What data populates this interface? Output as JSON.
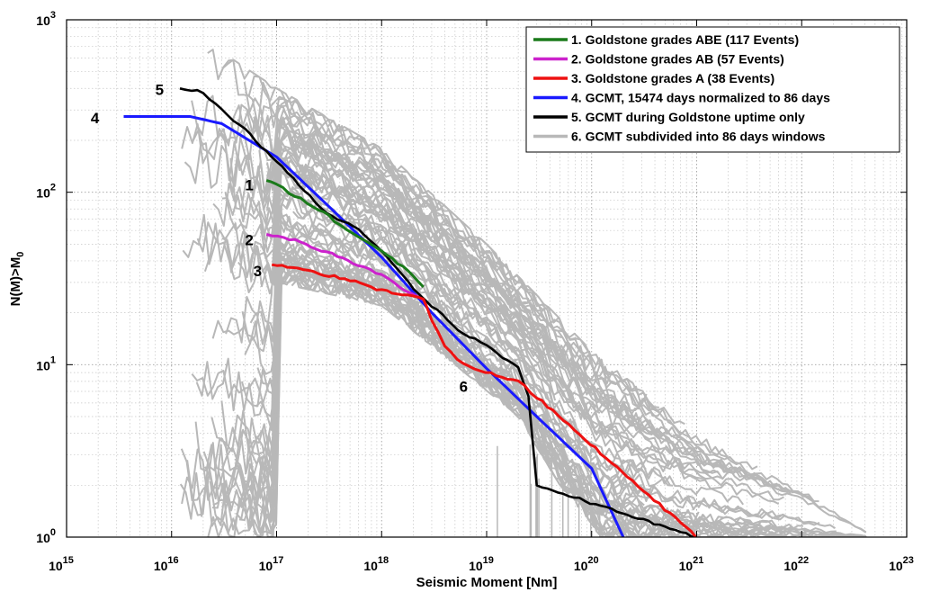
{
  "chart_data": {
    "type": "line",
    "xlabel": "Seismic Moment [Nm]",
    "ylabel": "N(M)>M",
    "ylabel_sub": "0",
    "x_scale": "log",
    "y_scale": "log",
    "xlim": [
      1000000000000000.0,
      1e+23
    ],
    "ylim": [
      1,
      1000
    ],
    "grid": true,
    "legend_position": "top-right",
    "x_ticks": [
      {
        "base": "10",
        "exp": "15"
      },
      {
        "base": "10",
        "exp": "16"
      },
      {
        "base": "10",
        "exp": "17"
      },
      {
        "base": "10",
        "exp": "18"
      },
      {
        "base": "10",
        "exp": "19"
      },
      {
        "base": "10",
        "exp": "20"
      },
      {
        "base": "10",
        "exp": "21"
      },
      {
        "base": "10",
        "exp": "22"
      },
      {
        "base": "10",
        "exp": "23"
      }
    ],
    "y_ticks": [
      {
        "base": "10",
        "exp": "0"
      },
      {
        "base": "10",
        "exp": "1"
      },
      {
        "base": "10",
        "exp": "2"
      },
      {
        "base": "10",
        "exp": "3"
      }
    ],
    "series": [
      {
        "id": "6",
        "name": "6. GCMT subdivided into 86 days windows",
        "label": "6",
        "label_at": [
          5.5e+18,
          7.5
        ],
        "color": "#b8b8b8",
        "band": true,
        "upper": [
          [
            1.2e+16,
            760
          ],
          [
            3e+16,
            650
          ],
          [
            1e+17,
            400
          ],
          [
            1e+18,
            180
          ],
          [
            1e+19,
            50
          ],
          [
            1e+20,
            12
          ],
          [
            1e+21,
            4
          ],
          [
            1e+22,
            2
          ],
          [
            5e+22,
            1
          ]
        ],
        "lower": [
          [
            1e+17,
            30
          ],
          [
            1e+18,
            22
          ],
          [
            5e+18,
            10
          ],
          [
            2e+19,
            5
          ],
          [
            5e+19,
            2
          ],
          [
            1e+20,
            1.2
          ],
          [
            1.2e+20,
            1
          ]
        ],
        "rand_range": [
          [
            1e+17,
            120
          ],
          [
            4e+17,
            30
          ],
          [
            1e+18,
            20
          ]
        ]
      },
      {
        "id": "4",
        "name": "4. GCMT, 15474 days normalized to 86 days",
        "label": "4",
        "label_at": [
          1700000000000000.0,
          270
        ],
        "color": "#1a1aff",
        "points": [
          [
            3500000000000000.0,
            275
          ],
          [
            1.5e+16,
            275
          ],
          [
            3e+16,
            250
          ],
          [
            1e+17,
            160
          ],
          [
            3e+17,
            85
          ],
          [
            1e+18,
            42
          ],
          [
            3e+18,
            20
          ],
          [
            1e+19,
            9.5
          ],
          [
            3e+19,
            5
          ],
          [
            1e+20,
            2.5
          ],
          [
            2e+20,
            1
          ]
        ]
      },
      {
        "id": "5",
        "name": "5. GCMT during Goldstone uptime only",
        "label": "5",
        "label_at": [
          7000000000000000.0,
          395
        ],
        "color": "#000000",
        "points": [
          [
            1.2e+16,
            400
          ],
          [
            2e+16,
            380
          ],
          [
            3e+16,
            300
          ],
          [
            5e+16,
            230
          ],
          [
            1e+17,
            150
          ],
          [
            3e+17,
            75
          ],
          [
            6e+17,
            62
          ],
          [
            1e+18,
            45
          ],
          [
            2e+18,
            28
          ],
          [
            3e+18,
            22
          ],
          [
            6e+18,
            15
          ],
          [
            1e+19,
            13
          ],
          [
            2e+19,
            9.5
          ],
          [
            2.5e+19,
            6.5
          ],
          [
            3e+19,
            2
          ],
          [
            1e+21,
            1
          ]
        ]
      },
      {
        "id": "1",
        "name": "1. Goldstone grades ABE (117 Events)",
        "label": "1",
        "label_at": [
          5e+16,
          110
        ],
        "color": "#1a7a1a",
        "points": [
          [
            8e+16,
            117
          ],
          [
            1e+17,
            110
          ],
          [
            1.5e+17,
            95
          ],
          [
            2.5e+17,
            80
          ],
          [
            4e+17,
            65
          ],
          [
            6e+17,
            55
          ],
          [
            1e+18,
            45
          ],
          [
            1.8e+18,
            35
          ],
          [
            2.5e+18,
            28
          ]
        ]
      },
      {
        "id": "2",
        "name": "2. Goldstone grades AB (57 Events)",
        "label": "2",
        "label_at": [
          5e+16,
          53
        ],
        "color": "#cc22cc",
        "points": [
          [
            8e+16,
            57
          ],
          [
            1.5e+17,
            53
          ],
          [
            3e+17,
            45
          ],
          [
            6e+17,
            38
          ],
          [
            1e+18,
            33
          ],
          [
            1.5e+18,
            28
          ],
          [
            2.5e+18,
            24
          ]
        ]
      },
      {
        "id": "3",
        "name": "3. Goldstone grades A (38 Events)",
        "label": "3",
        "label_at": [
          6e+16,
          35
        ],
        "color": "#ee1111",
        "points": [
          [
            9e+16,
            38
          ],
          [
            2e+17,
            35
          ],
          [
            5e+17,
            31
          ],
          [
            1e+18,
            27
          ],
          [
            2.5e+18,
            24
          ],
          [
            3e+18,
            18
          ],
          [
            4e+18,
            13
          ],
          [
            6e+18,
            10
          ],
          [
            2e+19,
            8
          ],
          [
            3e+19,
            6.5
          ],
          [
            1e+21,
            1
          ]
        ]
      }
    ],
    "legend_order": [
      "1",
      "2",
      "3",
      "4",
      "5",
      "6"
    ]
  }
}
